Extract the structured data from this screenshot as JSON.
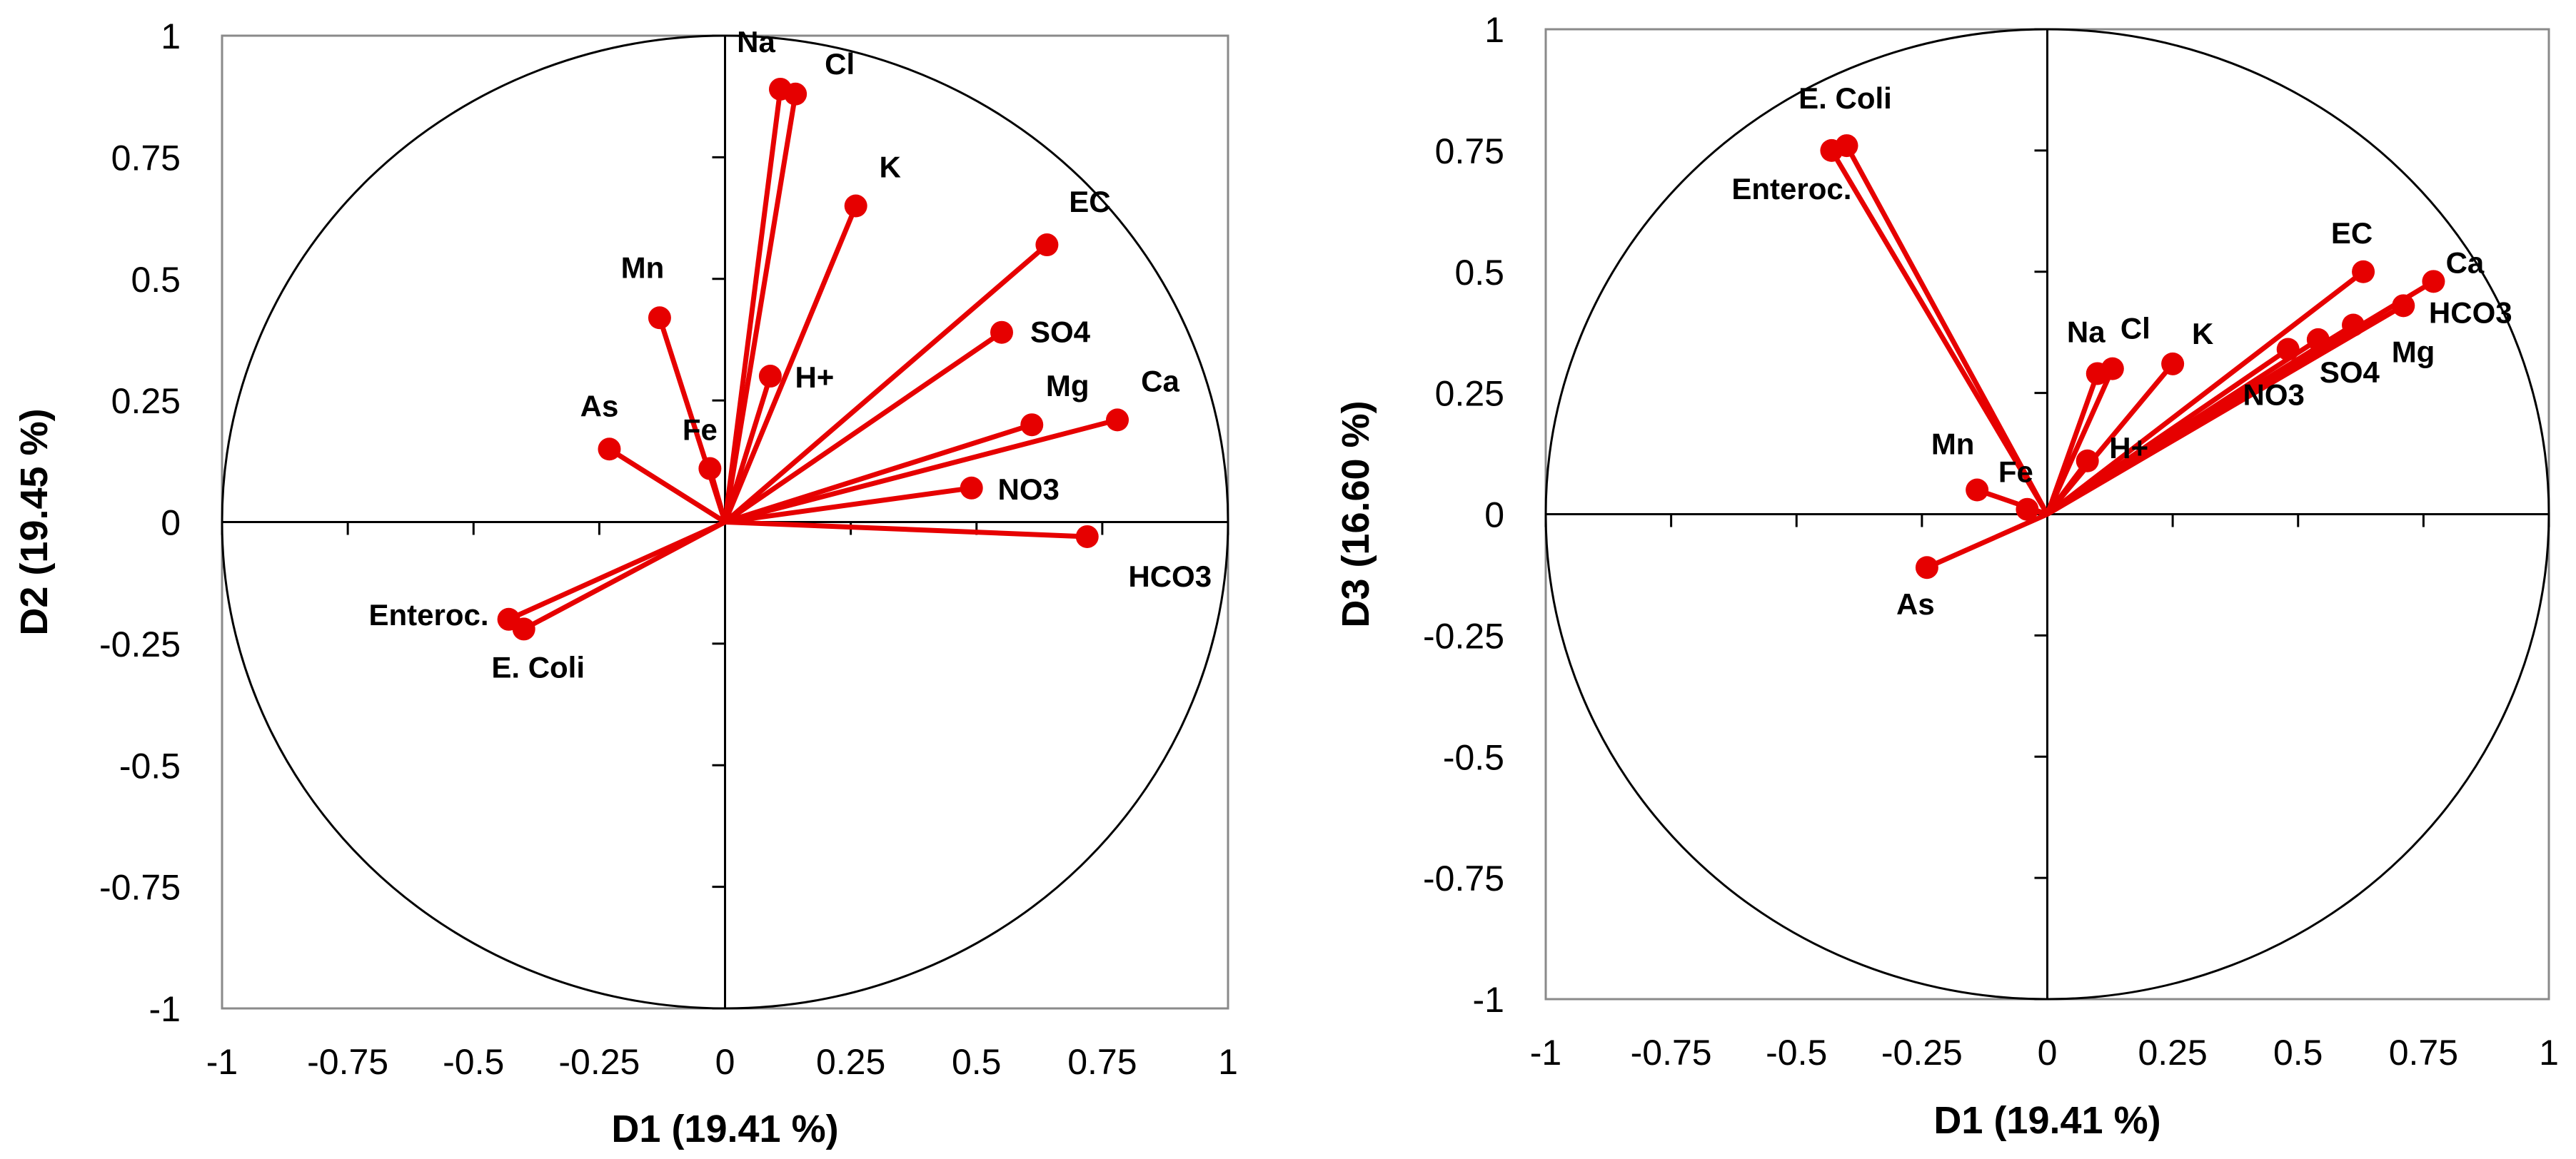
{
  "colors": {
    "vector": "#e60000",
    "axis": "#000000",
    "circle": "#000000"
  },
  "chart_data": [
    {
      "type": "scatter",
      "title": "",
      "xlabel": "D1 (19.41 %)",
      "ylabel": "D2 (19.45 %)",
      "xlim": [
        -1,
        1
      ],
      "ylim": [
        -1,
        1
      ],
      "grid": false,
      "correlation_circle": true,
      "tick_labels": [
        "-1",
        "-0.75",
        "-0.5",
        "-0.25",
        "0",
        "0.25",
        "0.5",
        "0.75",
        "1"
      ],
      "tick_values": [
        -1,
        -0.75,
        -0.5,
        -0.25,
        0,
        0.25,
        0.5,
        0.75,
        1
      ],
      "variables": [
        {
          "name": "Na",
          "x": 0.11,
          "y": 0.89
        },
        {
          "name": "Cl",
          "x": 0.14,
          "y": 0.88
        },
        {
          "name": "K",
          "x": 0.26,
          "y": 0.65
        },
        {
          "name": "EC",
          "x": 0.64,
          "y": 0.57
        },
        {
          "name": "SO4",
          "x": 0.55,
          "y": 0.39
        },
        {
          "name": "H+",
          "x": 0.09,
          "y": 0.3
        },
        {
          "name": "Mn",
          "x": -0.13,
          "y": 0.42
        },
        {
          "name": "As",
          "x": -0.23,
          "y": 0.15
        },
        {
          "name": "Fe",
          "x": -0.03,
          "y": 0.11
        },
        {
          "name": "Mg",
          "x": 0.61,
          "y": 0.2
        },
        {
          "name": "Ca",
          "x": 0.78,
          "y": 0.21
        },
        {
          "name": "NO3",
          "x": 0.49,
          "y": 0.07
        },
        {
          "name": "HCO3",
          "x": 0.72,
          "y": -0.03
        },
        {
          "name": "Enteroc.",
          "x": -0.43,
          "y": -0.2
        },
        {
          "name": "E. Coli",
          "x": -0.4,
          "y": -0.22
        }
      ]
    },
    {
      "type": "scatter",
      "title": "",
      "xlabel": "D1 (19.41 %)",
      "ylabel": "D3 (16.60 %)",
      "xlim": [
        -1,
        1
      ],
      "ylim": [
        -1,
        1
      ],
      "grid": false,
      "correlation_circle": true,
      "tick_labels": [
        "-1",
        "-0.75",
        "-0.5",
        "-0.25",
        "0",
        "0.25",
        "0.5",
        "0.75",
        "1"
      ],
      "tick_values": [
        -1,
        -0.75,
        -0.5,
        -0.25,
        0,
        0.25,
        0.5,
        0.75,
        1
      ],
      "variables": [
        {
          "name": "E. Coli",
          "x": -0.4,
          "y": 0.76
        },
        {
          "name": "Enteroc.",
          "x": -0.43,
          "y": 0.75
        },
        {
          "name": "EC",
          "x": 0.63,
          "y": 0.5
        },
        {
          "name": "Ca",
          "x": 0.77,
          "y": 0.48
        },
        {
          "name": "HCO3",
          "x": 0.71,
          "y": 0.43
        },
        {
          "name": "Mg",
          "x": 0.61,
          "y": 0.39
        },
        {
          "name": "SO4",
          "x": 0.54,
          "y": 0.36
        },
        {
          "name": "NO3",
          "x": 0.48,
          "y": 0.34
        },
        {
          "name": "Na",
          "x": 0.1,
          "y": 0.29
        },
        {
          "name": "Cl",
          "x": 0.13,
          "y": 0.3
        },
        {
          "name": "K",
          "x": 0.25,
          "y": 0.31
        },
        {
          "name": "H+",
          "x": 0.08,
          "y": 0.11
        },
        {
          "name": "Mn",
          "x": -0.14,
          "y": 0.05
        },
        {
          "name": "Fe",
          "x": -0.04,
          "y": 0.01
        },
        {
          "name": "As",
          "x": -0.24,
          "y": -0.11
        }
      ]
    }
  ]
}
